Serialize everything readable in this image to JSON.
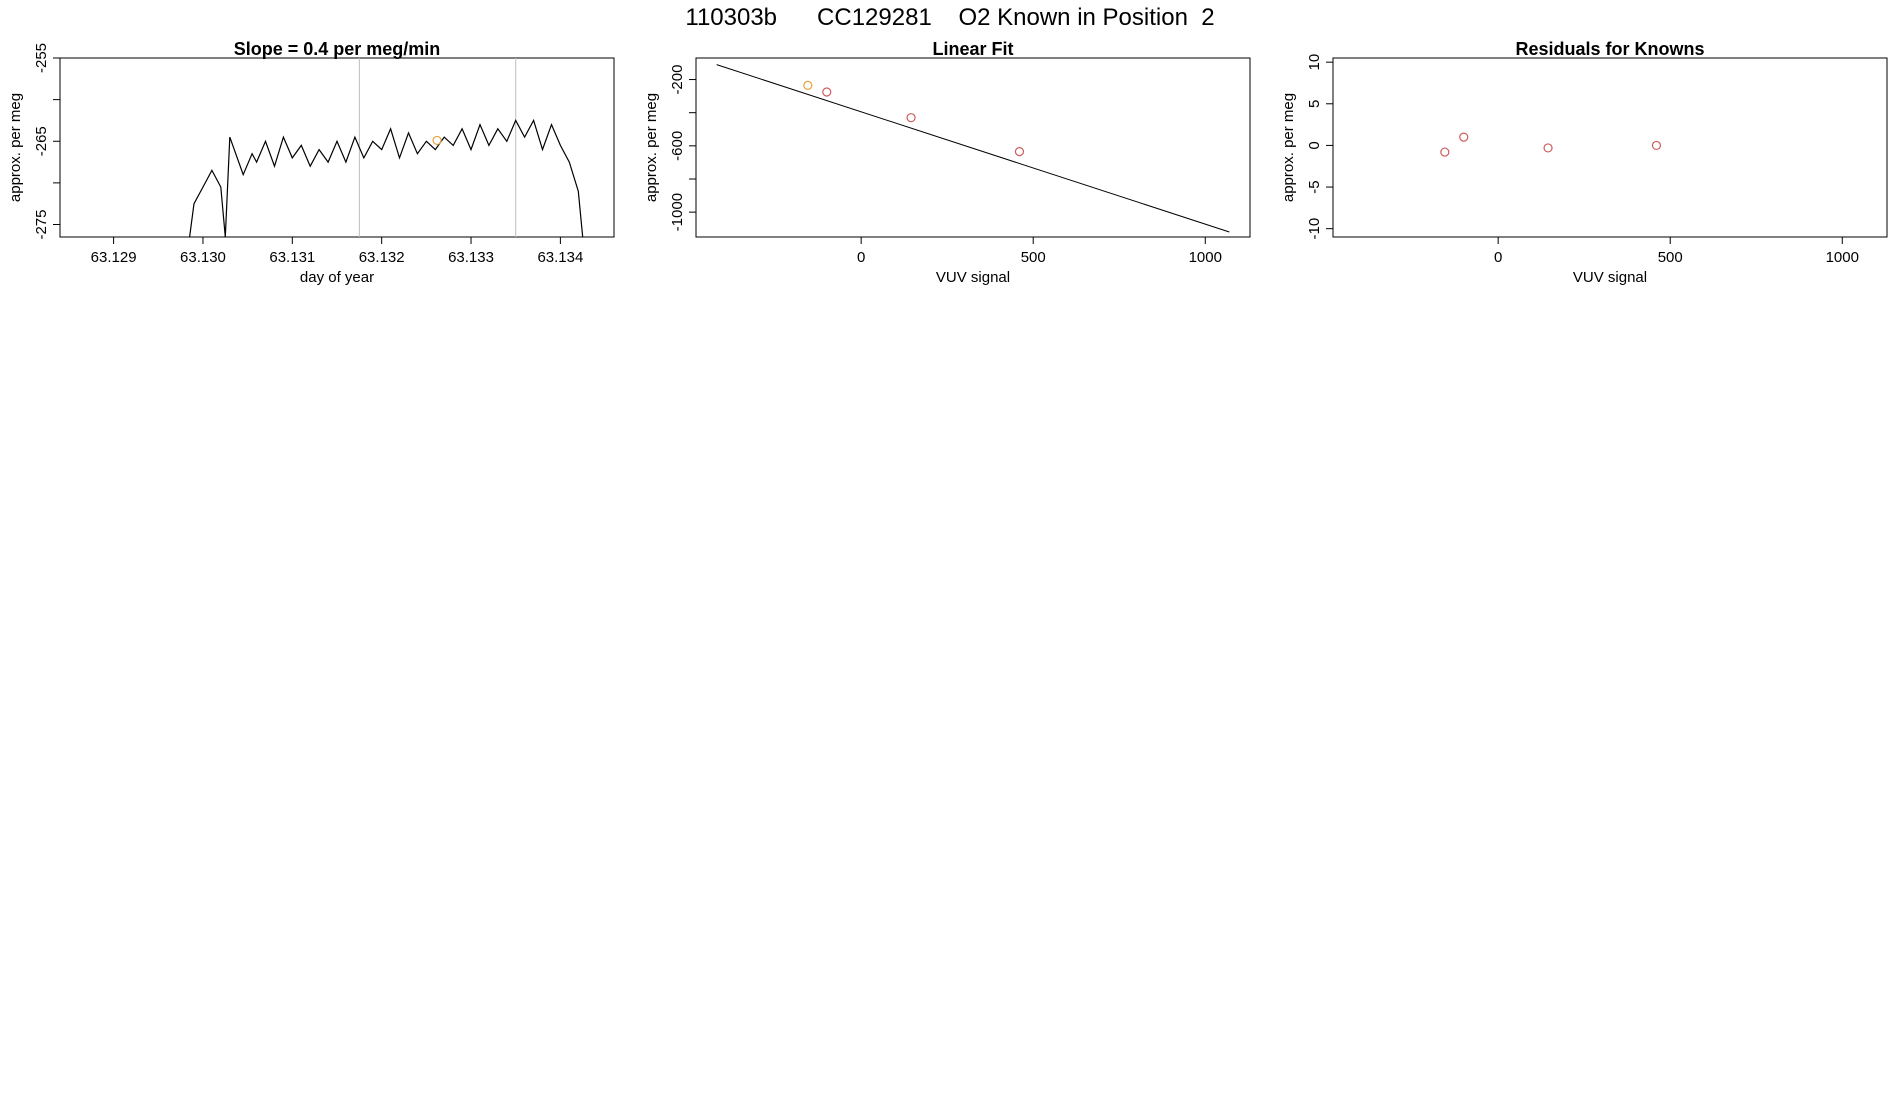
{
  "figure": {
    "title": "110303b      CC129281    O2 Known in Position  2"
  },
  "colors": {
    "axis": "#000000",
    "series_line": "#000000",
    "vline": "#bebebe",
    "known_point": "#cd5c5c",
    "highlight_point": "#e6a23c"
  },
  "chart_data": [
    {
      "id": "timeseries",
      "type": "line",
      "title": "Slope =  0.4  per meg/min",
      "xlabel": "day of year",
      "ylabel": "approx. per meg",
      "xlim": [
        63.1284,
        63.1346
      ],
      "ylim": [
        -276.5,
        -255
      ],
      "x_ticks": [
        63.129,
        63.13,
        63.131,
        63.132,
        63.133,
        63.134
      ],
      "x_tick_labels": [
        "63.129",
        "63.130",
        "63.131",
        "63.132",
        "63.133",
        "63.134"
      ],
      "y_ticks": [
        -255,
        -260,
        -265,
        -270,
        -275
      ],
      "y_tick_labels": [
        "-255",
        "",
        "-265",
        "",
        "-275"
      ],
      "vlines": [
        63.13175,
        63.1335
      ],
      "highlight_point": {
        "x": 63.13262,
        "y": -264.9
      },
      "series": [
        {
          "x": [
            63.12985,
            63.1299,
            63.13,
            63.1301,
            63.1302,
            63.13025,
            63.1303,
            63.13045,
            63.13055,
            63.1306,
            63.1307,
            63.1308,
            63.1309,
            63.131,
            63.1311,
            63.1312,
            63.1313,
            63.1314,
            63.1315,
            63.1316,
            63.1317,
            63.1318,
            63.1319,
            63.132,
            63.1321,
            63.1322,
            63.1323,
            63.1324,
            63.1325,
            63.1326,
            63.1327,
            63.1328,
            63.1329,
            63.133,
            63.1331,
            63.1332,
            63.1333,
            63.1334,
            63.1335,
            63.1336,
            63.1337,
            63.1338,
            63.1339,
            63.134,
            63.1341,
            63.1342,
            63.13425
          ],
          "y": [
            -276.5,
            -272.5,
            -270.5,
            -268.5,
            -270.5,
            -276.5,
            -264.5,
            -269.0,
            -266.5,
            -267.5,
            -265.0,
            -268.0,
            -264.5,
            -267.0,
            -265.5,
            -268.0,
            -266.0,
            -267.5,
            -265.0,
            -267.5,
            -264.5,
            -267.0,
            -265.0,
            -266.0,
            -263.5,
            -267.0,
            -264.0,
            -266.5,
            -265.0,
            -266.0,
            -264.5,
            -265.5,
            -263.5,
            -266.0,
            -263.0,
            -265.5,
            -263.5,
            -265.0,
            -262.5,
            -264.5,
            -262.5,
            -266.0,
            -263.0,
            -265.5,
            -267.5,
            -271.0,
            -276.5
          ]
        }
      ]
    },
    {
      "id": "linear-fit",
      "type": "scatter",
      "title": "Linear Fit",
      "xlabel": "VUV signal",
      "ylabel": "approx. per meg",
      "xlim": [
        -480,
        1130
      ],
      "ylim": [
        -1150,
        -70
      ],
      "x_ticks": [
        0,
        500,
        1000
      ],
      "x_tick_labels": [
        "0",
        "500",
        "1000"
      ],
      "y_ticks": [
        -200,
        -400,
        -600,
        -800,
        -1000
      ],
      "y_tick_labels": [
        "-200",
        "",
        "-600",
        "",
        "-1000"
      ],
      "fit_line": {
        "x": [
          -420,
          1070
        ],
        "y": [
          -110,
          -1120
        ]
      },
      "points": {
        "x": [
          -100,
          145,
          460
        ],
        "y": [
          -275,
          -430,
          -635
        ]
      },
      "highlight_point": {
        "x": -155,
        "y": -235
      }
    },
    {
      "id": "residuals",
      "type": "scatter",
      "title": "Residuals for Knowns",
      "xlabel": "VUV signal",
      "ylabel": "approx. per meg",
      "xlim": [
        -480,
        1130
      ],
      "ylim": [
        -11,
        10.5
      ],
      "x_ticks": [
        0,
        500,
        1000
      ],
      "x_tick_labels": [
        "0",
        "500",
        "1000"
      ],
      "y_ticks": [
        -10,
        -5,
        0,
        5,
        10
      ],
      "y_tick_labels": [
        "-10",
        "-5",
        "0",
        "5",
        "10"
      ],
      "points": {
        "x": [
          -155,
          -100,
          145,
          460
        ],
        "y": [
          -0.8,
          1.0,
          -0.3,
          0.0
        ]
      }
    }
  ]
}
